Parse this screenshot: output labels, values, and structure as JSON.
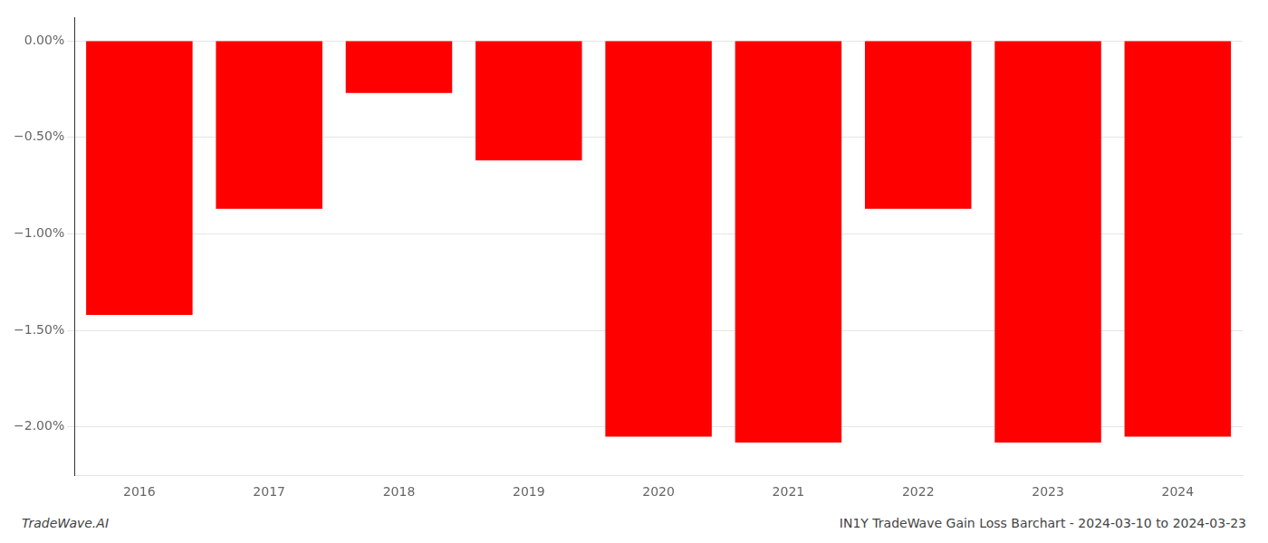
{
  "chart_data": {
    "type": "bar",
    "title": "IN1Y TradeWave Gain Loss Barchart - 2024-03-10 to 2024-03-23",
    "annotations": [
      "TradeWave.AI"
    ],
    "categories": [
      "2016",
      "2017",
      "2018",
      "2019",
      "2020",
      "2021",
      "2022",
      "2023",
      "2024"
    ],
    "values": [
      -1.42,
      -0.87,
      -0.27,
      -0.62,
      -2.05,
      -2.08,
      -0.87,
      -2.08,
      -2.05
    ],
    "color": "#ff0000",
    "ylim": [
      -2.25,
      0.12
    ],
    "yticks": [
      {
        "value": 0.0,
        "label": "0.00%"
      },
      {
        "value": -0.5,
        "label": "−0.50%"
      },
      {
        "value": -1.0,
        "label": "−1.00%"
      },
      {
        "value": -1.5,
        "label": "−1.50%"
      },
      {
        "value": -2.0,
        "label": "−2.00%"
      }
    ],
    "grid": true
  }
}
